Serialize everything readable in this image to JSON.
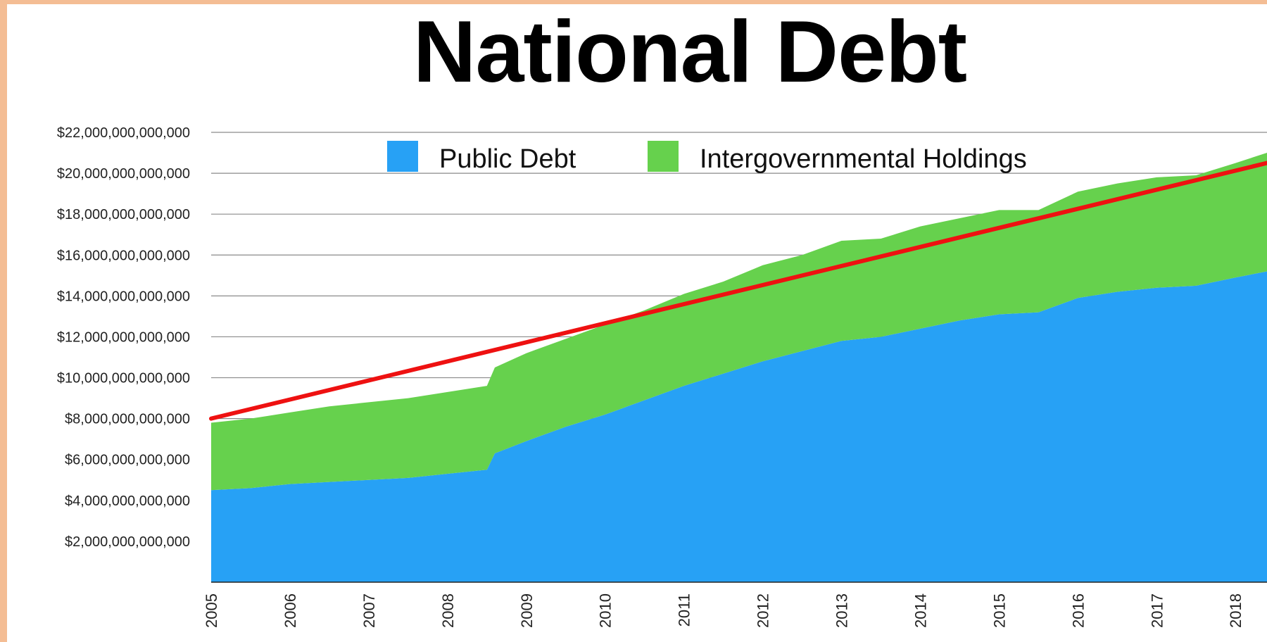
{
  "chart_data": {
    "type": "area",
    "title": "National Debt",
    "stacked": true,
    "grid": true,
    "legend_position": "top-center",
    "ylim": [
      0,
      22000000000000
    ],
    "xlim": [
      2005,
      2018.4
    ],
    "y_ticks": [
      {
        "value": 2000000000000,
        "label": "$2,000,000,000,000"
      },
      {
        "value": 4000000000000,
        "label": "$4,000,000,000,000"
      },
      {
        "value": 6000000000000,
        "label": "$6,000,000,000,000"
      },
      {
        "value": 8000000000000,
        "label": "$8,000,000,000,000"
      },
      {
        "value": 10000000000000,
        "label": "$10,000,000,000,000"
      },
      {
        "value": 12000000000000,
        "label": "$12,000,000,000,000"
      },
      {
        "value": 14000000000000,
        "label": "$14,000,000,000,000"
      },
      {
        "value": 16000000000000,
        "label": "$16,000,000,000,000"
      },
      {
        "value": 18000000000000,
        "label": "$18,000,000,000,000"
      },
      {
        "value": 20000000000000,
        "label": "$20,000,000,000,000"
      },
      {
        "value": 22000000000000,
        "label": "$22,000,000,000,000"
      }
    ],
    "x_ticks": [
      "2005",
      "2006",
      "2007",
      "2008",
      "2009",
      "2010",
      "2011",
      "2012",
      "2013",
      "2014",
      "2015",
      "2016",
      "2017",
      "2018"
    ],
    "x": [
      2005.0,
      2005.5,
      2006.0,
      2006.5,
      2007.0,
      2007.5,
      2008.0,
      2008.5,
      2008.6,
      2009.0,
      2009.5,
      2010.0,
      2010.5,
      2011.0,
      2011.5,
      2012.0,
      2012.5,
      2013.0,
      2013.5,
      2014.0,
      2014.5,
      2015.0,
      2015.5,
      2016.0,
      2016.5,
      2017.0,
      2017.5,
      2018.0,
      2018.4
    ],
    "series": [
      {
        "name": "Public Debt",
        "color": "#27a1f5",
        "values": [
          4500000000000.0,
          4600000000000.0,
          4800000000000.0,
          4900000000000.0,
          5000000000000.0,
          5100000000000.0,
          5300000000000.0,
          5500000000000.0,
          6300000000000.0,
          6900000000000.0,
          7600000000000.0,
          8200000000000.0,
          8900000000000.0,
          9600000000000.0,
          10200000000000.0,
          10800000000000.0,
          11300000000000.0,
          11800000000000.0,
          12000000000000.0,
          12400000000000.0,
          12800000000000.0,
          13100000000000.0,
          13200000000000.0,
          13900000000000.0,
          14200000000000.0,
          14400000000000.0,
          14500000000000.0,
          14900000000000.0,
          15200000000000.0
        ]
      },
      {
        "name": "Intergovernmental Holdings",
        "color": "#66d14d",
        "values": [
          3300000000000.0,
          3400000000000.0,
          3500000000000.0,
          3700000000000.0,
          3800000000000.0,
          3900000000000.0,
          4000000000000.0,
          4100000000000.0,
          4200000000000.0,
          4300000000000.0,
          4300000000000.0,
          4400000000000.0,
          4400000000000.0,
          4500000000000.0,
          4500000000000.0,
          4700000000000.0,
          4700000000000.0,
          4900000000000.0,
          4800000000000.0,
          5000000000000.0,
          5000000000000.0,
          5100000000000.0,
          5000000000000.0,
          5200000000000.0,
          5300000000000.0,
          5400000000000.0,
          5400000000000.0,
          5600000000000.0,
          5800000000000.0
        ]
      }
    ],
    "trend_line": {
      "color": "#ee1111",
      "points": [
        [
          2005.0,
          8000000000000.0
        ],
        [
          2018.4,
          20500000000000.0
        ]
      ]
    }
  }
}
